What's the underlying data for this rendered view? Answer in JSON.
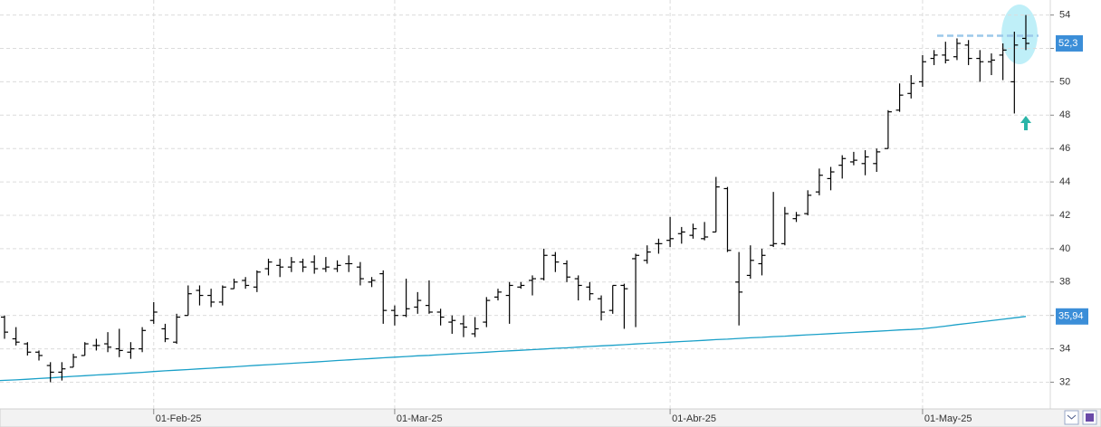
{
  "chart_data": {
    "type": "ohlc",
    "categories": [
      null,
      null,
      null,
      null,
      null,
      null,
      null,
      null,
      null,
      null,
      null,
      null,
      null,
      "01-Feb-25",
      null,
      null,
      null,
      null,
      null,
      null,
      null,
      null,
      null,
      null,
      null,
      null,
      null,
      null,
      null,
      null,
      null,
      null,
      null,
      null,
      "01-Mar-25",
      null,
      null,
      null,
      null,
      null,
      null,
      null,
      null,
      null,
      null,
      null,
      null,
      null,
      null,
      null,
      null,
      null,
      null,
      null,
      null,
      null,
      null,
      null,
      "01-Abr-25",
      null,
      null,
      null,
      null,
      null,
      null,
      null,
      null,
      null,
      null,
      null,
      null,
      null,
      null,
      null,
      null,
      null,
      null,
      null,
      null,
      null,
      "01-May-25",
      null,
      null,
      null,
      null,
      null,
      null,
      null,
      null,
      null
    ],
    "open": [
      35.9,
      34.6,
      34.3,
      33.8,
      33.0,
      32.6,
      32.9,
      33.6,
      34.2,
      34.3,
      34.0,
      33.8,
      34.0,
      35.7,
      35.2,
      34.4,
      36.0,
      37.5,
      37.2,
      36.8,
      37.6,
      38.1,
      37.7,
      38.8,
      39.0,
      38.9,
      39.2,
      39.2,
      38.8,
      38.8,
      39.1,
      38.9,
      38.0,
      38.5,
      36.3,
      36.0,
      36.5,
      36.6,
      36.2,
      35.6,
      35.5,
      34.9,
      35.6,
      37.1,
      37.2,
      37.7,
      38.1,
      38.2,
      39.6,
      39.1,
      38.2,
      37.7,
      37.0,
      36.3,
      37.8,
      39.4,
      39.3,
      40.3,
      40.5,
      40.9,
      40.8,
      40.6,
      41.0,
      43.6,
      38.0,
      38.4,
      39.1,
      40.2,
      40.3,
      41.8,
      42.1,
      43.4,
      44.2,
      45.0,
      45.2,
      45.1,
      45.1,
      46.0,
      48.3,
      49.3,
      50.0,
      51.4,
      51.6,
      51.5,
      52.2,
      51.4,
      51.2,
      51.6,
      50.0,
      52.6
    ],
    "high": [
      36.0,
      35.3,
      34.4,
      33.9,
      33.2,
      33.2,
      33.7,
      34.4,
      34.6,
      35.0,
      35.2,
      34.4,
      35.3,
      36.8,
      35.5,
      36.1,
      37.8,
      37.8,
      37.6,
      37.8,
      38.2,
      38.3,
      38.7,
      39.4,
      39.4,
      39.5,
      39.4,
      39.6,
      39.5,
      39.3,
      39.6,
      39.2,
      38.3,
      38.7,
      36.6,
      38.2,
      37.4,
      38.1,
      36.4,
      36.0,
      36.0,
      35.9,
      37.1,
      37.6,
      38.0,
      38.0,
      38.4,
      40.0,
      39.8,
      39.3,
      38.4,
      38.0,
      37.2,
      37.8,
      37.9,
      39.7,
      40.2,
      40.6,
      41.9,
      41.3,
      41.5,
      41.6,
      44.3,
      43.7,
      39.8,
      40.2,
      40.0,
      43.4,
      42.5,
      42.2,
      43.5,
      44.8,
      44.9,
      45.6,
      45.8,
      45.9,
      46.0,
      48.3,
      49.9,
      50.4,
      51.6,
      51.9,
      52.4,
      52.6,
      52.5,
      51.9,
      51.7,
      52.3,
      53.0,
      54.0
    ],
    "low": [
      34.6,
      34.2,
      33.6,
      33.3,
      32.0,
      32.1,
      32.9,
      33.6,
      33.9,
      33.8,
      33.5,
      33.4,
      33.8,
      35.5,
      34.4,
      34.3,
      36.0,
      36.6,
      36.5,
      36.6,
      37.6,
      37.6,
      37.4,
      38.4,
      38.3,
      38.6,
      38.6,
      38.5,
      38.6,
      38.6,
      38.6,
      37.8,
      37.7,
      35.5,
      35.4,
      35.9,
      36.1,
      36.1,
      35.4,
      34.9,
      34.7,
      34.7,
      35.3,
      36.9,
      35.5,
      37.6,
      37.2,
      38.1,
      38.6,
      38.0,
      36.9,
      36.9,
      35.7,
      36.1,
      35.2,
      35.3,
      39.1,
      39.7,
      40.1,
      40.3,
      40.6,
      40.5,
      41.0,
      39.8,
      35.4,
      38.2,
      38.4,
      40.1,
      40.2,
      41.6,
      42.0,
      43.2,
      43.5,
      44.2,
      45.0,
      44.4,
      44.6,
      46.0,
      48.2,
      49.0,
      49.7,
      51.0,
      51.1,
      51.3,
      51.0,
      50.0,
      50.4,
      50.1,
      48.1,
      51.9
    ],
    "close": [
      35.0,
      34.4,
      33.8,
      33.6,
      32.6,
      32.8,
      33.5,
      34.3,
      34.2,
      34.1,
      33.9,
      34.0,
      35.1,
      36.2,
      34.6,
      35.9,
      37.3,
      37.2,
      36.8,
      37.7,
      38.0,
      37.8,
      38.6,
      39.2,
      38.9,
      39.2,
      38.9,
      38.8,
      38.9,
      39.0,
      39.1,
      38.2,
      38.1,
      36.3,
      36.0,
      36.4,
      36.9,
      36.2,
      35.9,
      35.7,
      35.3,
      35.2,
      36.9,
      37.4,
      37.8,
      37.8,
      38.2,
      39.6,
      39.2,
      38.3,
      37.8,
      37.3,
      36.2,
      37.8,
      37.6,
      39.6,
      39.8,
      40.3,
      40.6,
      41.0,
      41.2,
      40.7,
      43.7,
      39.9,
      37.4,
      39.3,
      39.6,
      40.3,
      42.1,
      42.0,
      43.2,
      44.4,
      44.6,
      45.4,
      45.3,
      45.5,
      45.8,
      48.2,
      49.2,
      49.9,
      51.2,
      51.6,
      51.3,
      52.3,
      51.4,
      51.2,
      51.3,
      51.9,
      52.2,
      52.3
    ],
    "color": "#000000",
    "series": [
      {
        "color": "#1aa0c8",
        "last_value_label": "35,94",
        "values": [
          32.1,
          32.14,
          32.18,
          32.22,
          32.26,
          32.31,
          32.35,
          32.39,
          32.43,
          32.47,
          32.51,
          32.55,
          32.59,
          32.64,
          32.68,
          32.72,
          32.76,
          32.8,
          32.84,
          32.88,
          32.92,
          32.97,
          33.01,
          33.05,
          33.09,
          33.13,
          33.17,
          33.21,
          33.25,
          33.3,
          33.34,
          33.38,
          33.42,
          33.46,
          33.5,
          33.54,
          33.58,
          33.61,
          33.65,
          33.69,
          33.73,
          33.76,
          33.8,
          33.84,
          33.88,
          33.91,
          33.95,
          33.99,
          34.03,
          34.06,
          34.1,
          34.14,
          34.18,
          34.21,
          34.25,
          34.29,
          34.33,
          34.36,
          34.4,
          34.44,
          34.47,
          34.51,
          34.55,
          34.58,
          34.62,
          34.66,
          34.69,
          34.73,
          34.76,
          34.8,
          34.84,
          34.87,
          34.91,
          34.95,
          34.98,
          35.02,
          35.05,
          35.09,
          35.13,
          35.16,
          35.2,
          35.28,
          35.36,
          35.45,
          35.53,
          35.61,
          35.69,
          35.77,
          35.86,
          35.94
        ]
      }
    ],
    "last_price": {
      "value": 52.3,
      "label": "52,3"
    },
    "resistance": 52.76,
    "ylim": [
      30.4,
      54.9
    ],
    "yticks": [
      32,
      34,
      36,
      38,
      40,
      42,
      44,
      46,
      48,
      50,
      52,
      54
    ],
    "grid": true
  }
}
